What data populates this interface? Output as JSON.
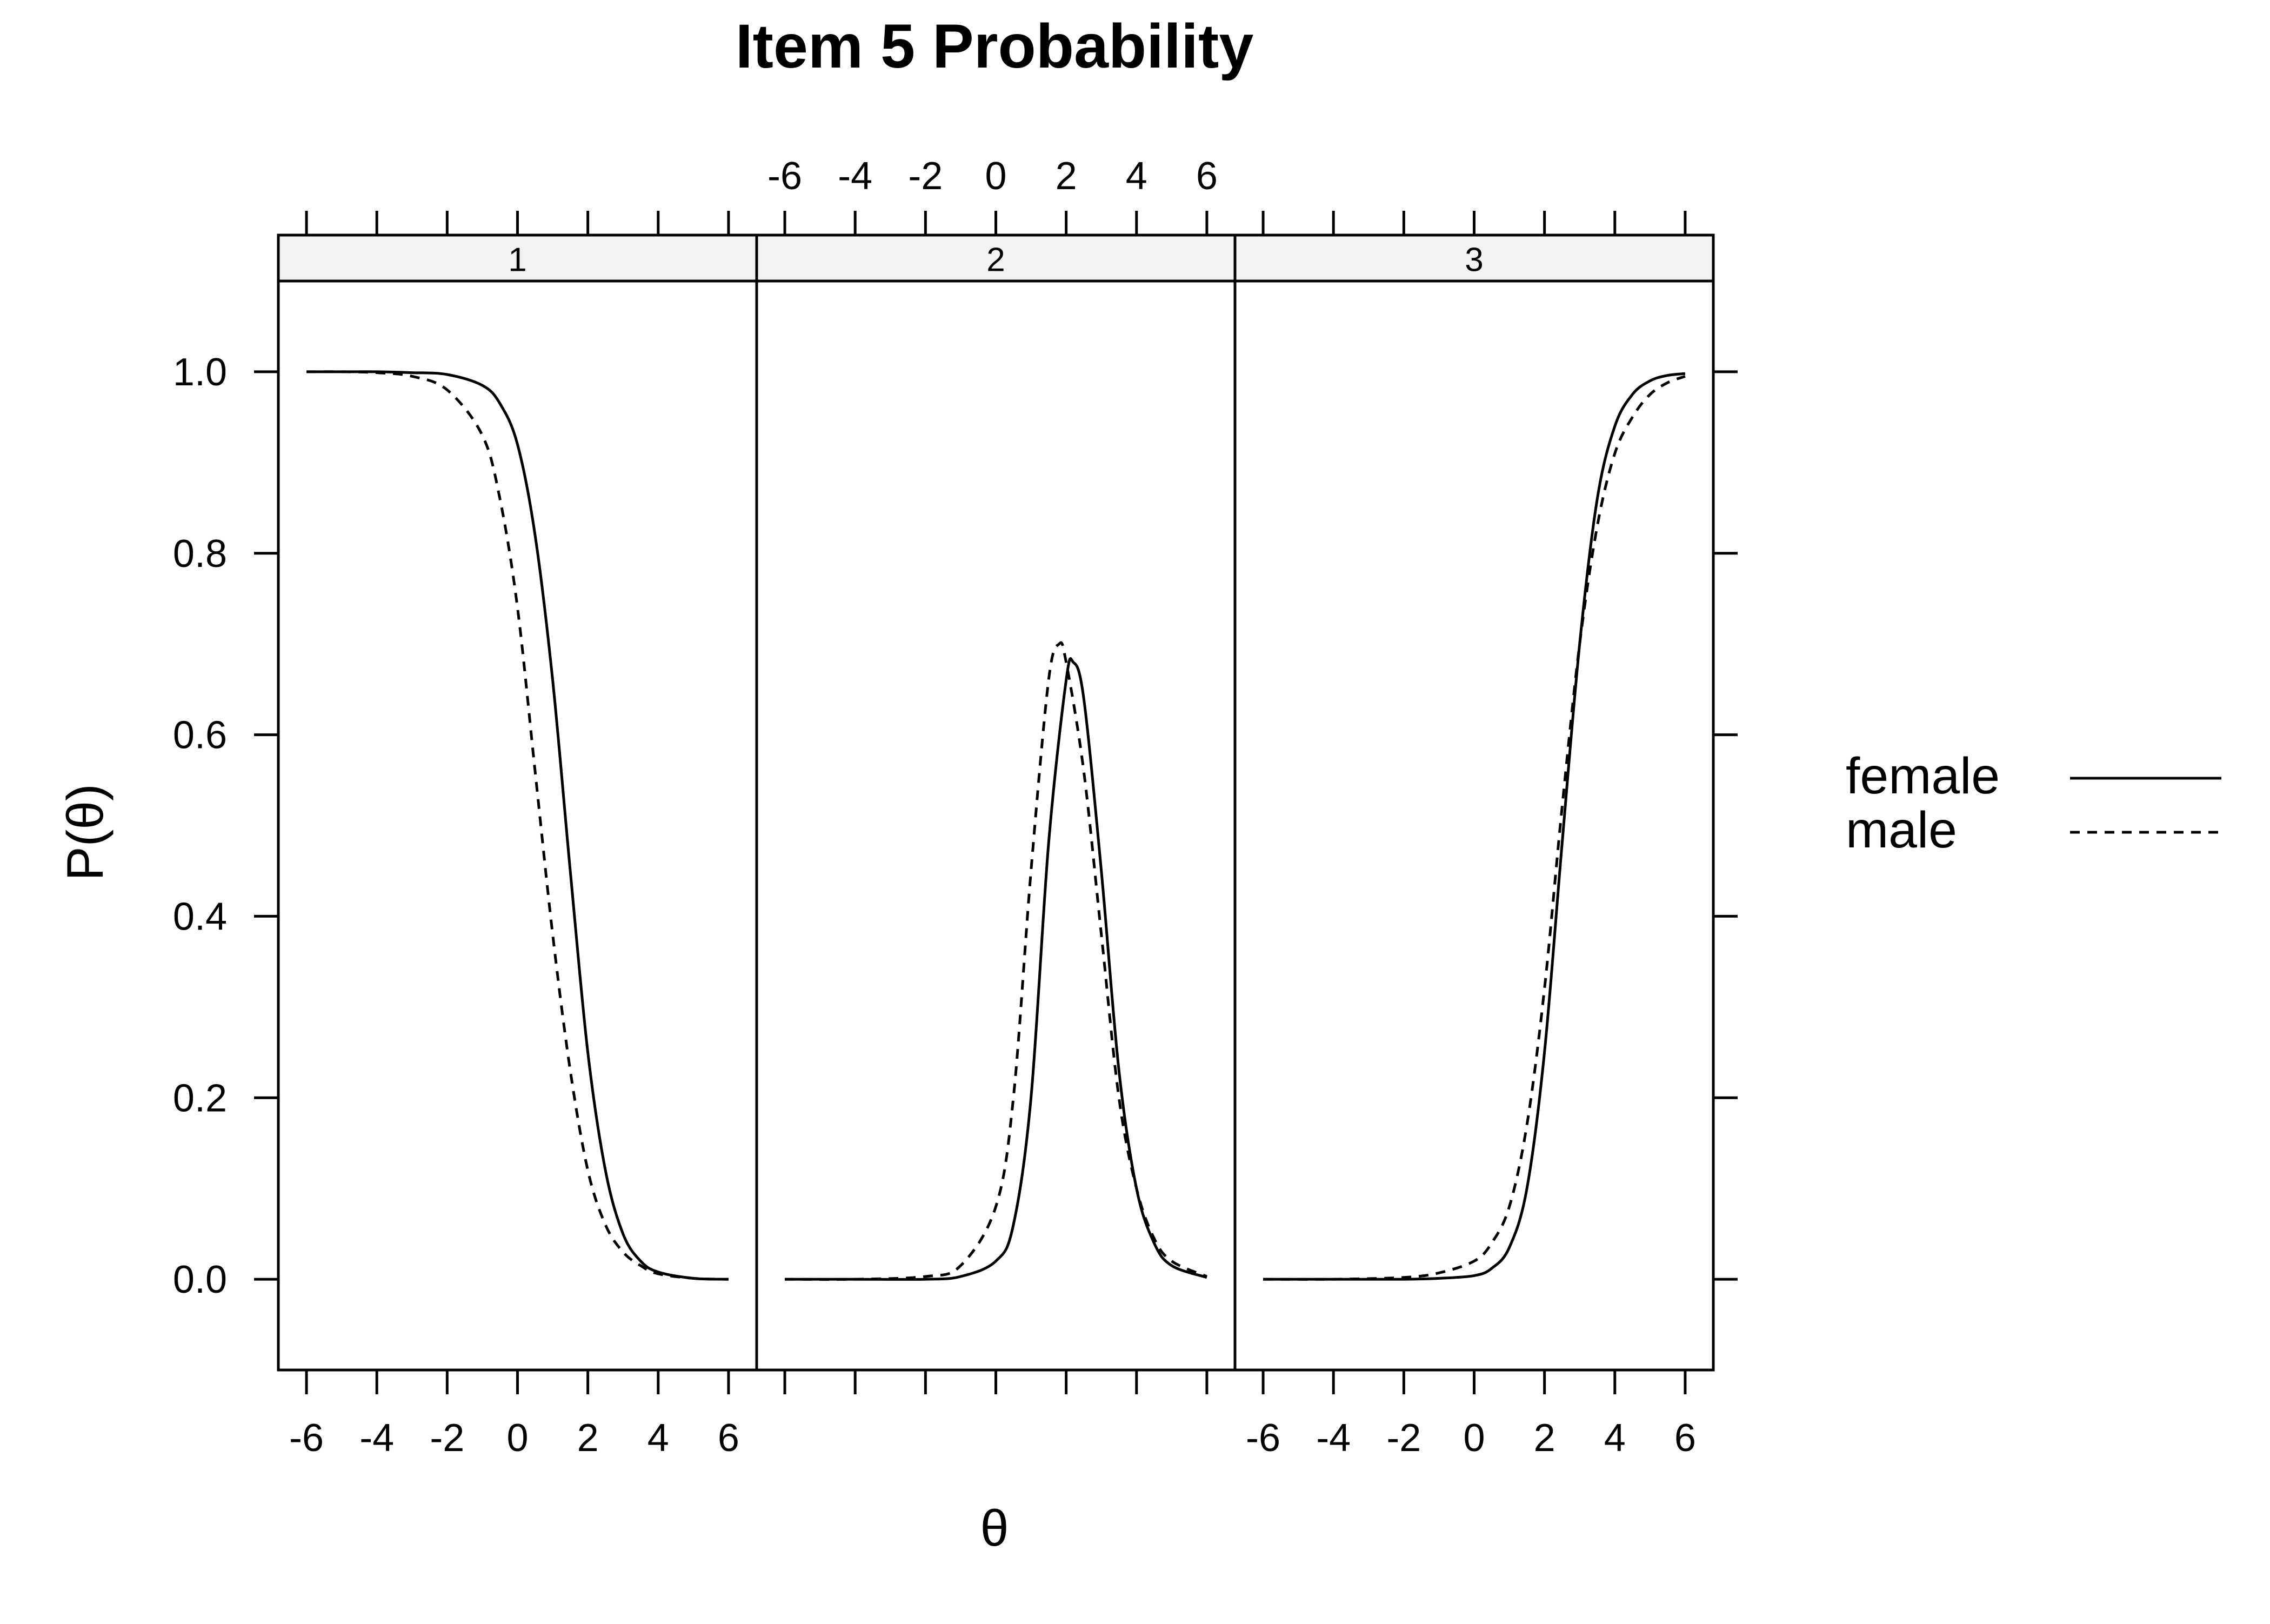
{
  "chart_data": {
    "type": "line",
    "title": "Item 5 Probability",
    "xlabel": "θ",
    "ylabel": "P(θ)",
    "xlim": [
      -6.8,
      6.8
    ],
    "ylim": [
      -0.1,
      1.1
    ],
    "x_ticks": [
      -6,
      -4,
      -2,
      0,
      2,
      4,
      6
    ],
    "x_tick_labels": [
      "-6",
      "-4",
      "-2",
      "0",
      "2",
      "4",
      "6"
    ],
    "y_ticks": [
      0.0,
      0.2,
      0.4,
      0.6,
      0.8,
      1.0
    ],
    "y_tick_labels": [
      "0.0",
      "0.2",
      "0.4",
      "0.6",
      "0.8",
      "1.0"
    ],
    "grid": false,
    "legend_placement": "right",
    "legend": [
      {
        "name": "female",
        "line_style": "solid"
      },
      {
        "name": "male",
        "line_style": "dashed"
      }
    ],
    "line_color": "#000000",
    "strip_color": "#f2f2f2",
    "panels": [
      {
        "label": "1",
        "series": [
          {
            "name": "female",
            "x": [
              -6,
              -5,
              -4,
              -3,
              -2,
              -1,
              -0.5,
              0,
              0.5,
              1,
              1.5,
              2,
              2.5,
              3,
              3.5,
              4,
              5,
              6
            ],
            "y": [
              1.0,
              1.0,
              1.0,
              0.999,
              0.997,
              0.985,
              0.965,
              0.92,
              0.82,
              0.66,
              0.45,
              0.25,
              0.12,
              0.05,
              0.02,
              0.008,
              0.001,
              0.0
            ]
          },
          {
            "name": "male",
            "x": [
              -6,
              -5,
              -4,
              -3,
              -2,
              -1,
              -0.5,
              0,
              0.5,
              1,
              1.5,
              2,
              2.5,
              3,
              3.5,
              4,
              5,
              6
            ],
            "y": [
              1.0,
              1.0,
              0.999,
              0.995,
              0.98,
              0.93,
              0.86,
              0.74,
              0.56,
              0.38,
              0.23,
              0.12,
              0.06,
              0.03,
              0.015,
              0.006,
              0.001,
              0.0
            ]
          }
        ]
      },
      {
        "label": "2",
        "series": [
          {
            "name": "female",
            "x": [
              -6,
              -4,
              -2,
              -1,
              0,
              0.5,
              1,
              1.5,
              2,
              2.2,
              2.5,
              3,
              3.5,
              4,
              4.5,
              5,
              6
            ],
            "y": [
              0.0,
              0.0,
              0.0,
              0.003,
              0.02,
              0.06,
              0.2,
              0.48,
              0.66,
              0.68,
              0.64,
              0.45,
              0.23,
              0.1,
              0.04,
              0.015,
              0.002
            ]
          },
          {
            "name": "male",
            "x": [
              -6,
              -4,
              -2,
              -1,
              0,
              0.5,
              1,
              1.5,
              1.8,
              2,
              2.5,
              3,
              3.5,
              4,
              4.5,
              5,
              6
            ],
            "y": [
              0.0,
              0.0,
              0.003,
              0.015,
              0.08,
              0.2,
              0.45,
              0.66,
              0.7,
              0.68,
              0.56,
              0.38,
              0.2,
              0.1,
              0.045,
              0.02,
              0.003
            ]
          }
        ]
      },
      {
        "label": "3",
        "series": [
          {
            "name": "female",
            "x": [
              -6,
              -4,
              -2,
              -1,
              0,
              0.5,
              1,
              1.5,
              2,
              2.5,
              3,
              3.5,
              4,
              4.5,
              5,
              5.5,
              6
            ],
            "y": [
              0.0,
              0.0,
              0.0,
              0.001,
              0.004,
              0.012,
              0.035,
              0.1,
              0.25,
              0.48,
              0.7,
              0.86,
              0.94,
              0.975,
              0.99,
              0.996,
              0.998
            ]
          },
          {
            "name": "male",
            "x": [
              -6,
              -4,
              -2,
              -1,
              0,
              0.5,
              1,
              1.5,
              2,
              2.5,
              3,
              3.5,
              4,
              4.5,
              5,
              5.5,
              6
            ],
            "y": [
              0.0,
              0.0,
              0.002,
              0.007,
              0.02,
              0.04,
              0.08,
              0.17,
              0.32,
              0.52,
              0.7,
              0.83,
              0.91,
              0.95,
              0.975,
              0.988,
              0.995
            ]
          }
        ]
      }
    ]
  }
}
